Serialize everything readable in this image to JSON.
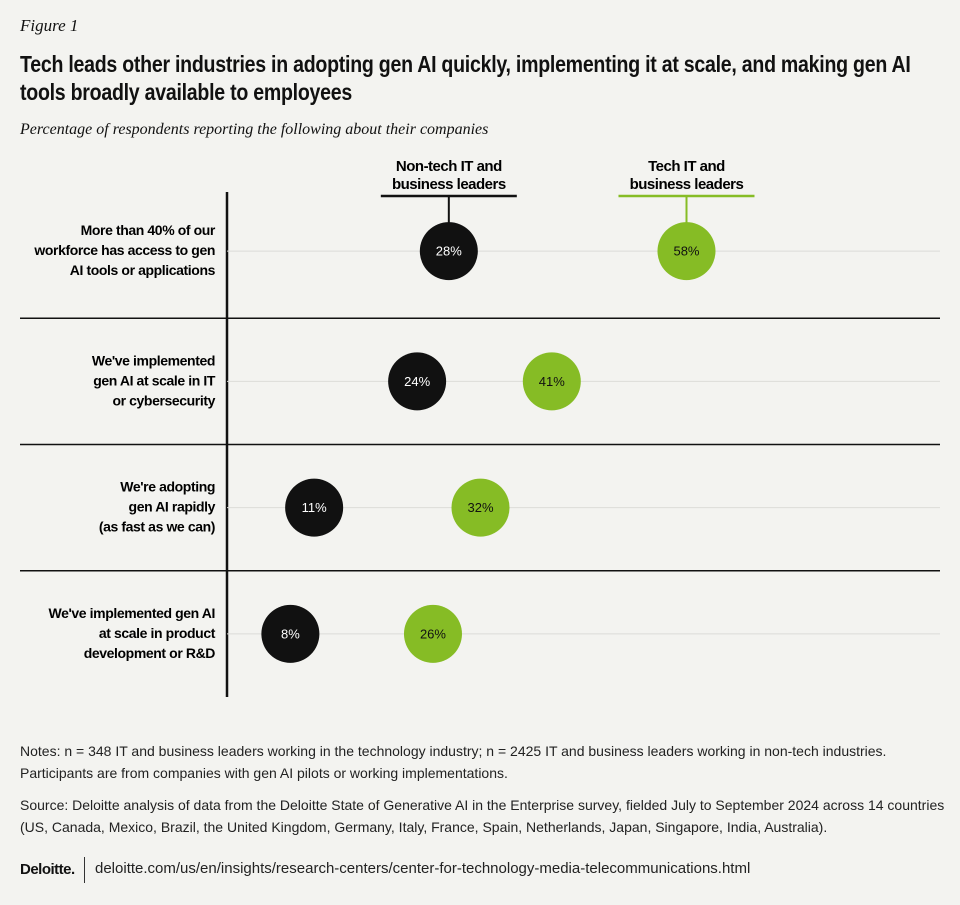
{
  "chart_data": {
    "type": "dot",
    "figure_label": "Figure 1",
    "title": "Tech leads other industries in adopting gen AI quickly, implementing it at scale, and making gen AI tools broadly available to employees",
    "subtitle": "Percentage of respondents reporting the following about their companies",
    "categories": [
      "More than 40% of our\nworkforce has access to gen\nAI tools or applications",
      "We've implemented\ngen AI at scale in IT\nor cybersecurity",
      "We're adopting\ngen AI rapidly\n(as fast as we can)",
      "We've implemented gen AI\nat scale in product\ndevelopment or R&D"
    ],
    "series": [
      {
        "name": "Non-tech IT and\nbusiness leaders",
        "color": "#111111",
        "values": [
          28,
          24,
          11,
          8
        ],
        "value_labels": [
          "28%",
          "24%",
          "11%",
          "8%"
        ]
      },
      {
        "name": "Tech IT and\nbusiness leaders",
        "color": "#86bc25",
        "values": [
          58,
          41,
          32,
          26
        ],
        "value_labels": [
          "58%",
          "41%",
          "32%",
          "26%"
        ]
      }
    ],
    "xlim": [
      0,
      90
    ],
    "notes": "Notes: n = 348 IT and business leaders working in the technology industry; n = 2425 IT and business leaders working in non-tech industries. Participants are from companies with gen AI pilots or working implementations.",
    "source": "Source: Deloitte analysis of data from the Deloitte State of Generative AI in the Enterprise survey, fielded July to September 2024 across 14 countries (US, Canada, Mexico, Brazil, the United Kingdom, Germany, Italy, France, Spain, Netherlands, Japan, Singapore, India, Australia).",
    "logo": "Deloitte.",
    "url": "deloitte.com/us/en/insights/research-centers/center-for-technology-media-telecommunications.html"
  }
}
